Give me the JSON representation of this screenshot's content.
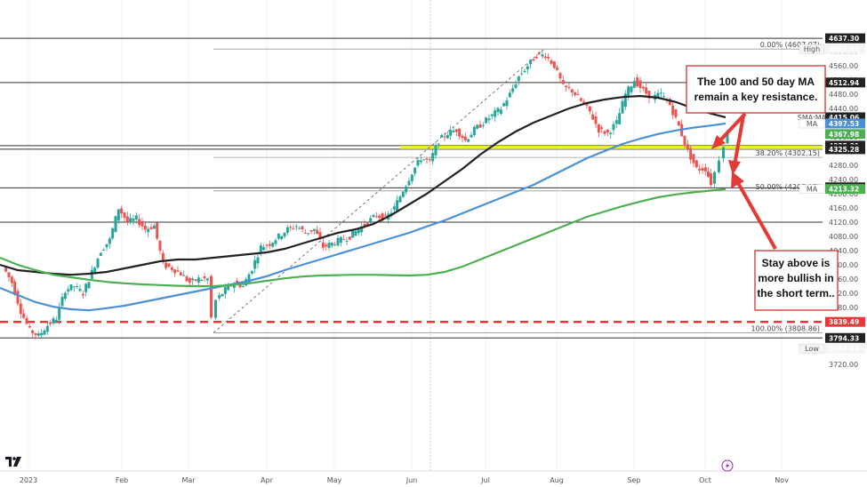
{
  "colors": {
    "up": "#26a69a",
    "down": "#ef5350",
    "ma_black": "#222222",
    "ma_blue": "#4a90d9",
    "ma_green": "#4caf50",
    "zone": "#e6f20a",
    "dash_red": "#e53935",
    "arrow_red": "#e53935",
    "box_border": "#d32f2f"
  },
  "chart_data": {
    "type": "line",
    "title": "",
    "x_months": [
      "2023",
      "Feb",
      "Mar",
      "Apr",
      "May",
      "Jun",
      "Jul",
      "Aug",
      "Sep",
      "Oct",
      "Nov"
    ],
    "y_ticks": [
      3720,
      3760,
      3800,
      3840,
      3880,
      3920,
      3960,
      4000,
      4040,
      4080,
      4120,
      4160,
      4200,
      4240,
      4280,
      4320,
      4360,
      4400,
      4440,
      4480,
      4520,
      4560,
      4600
    ],
    "ylim": [
      3700,
      4650
    ],
    "price_tags": [
      {
        "value": "4637.30",
        "price": 4637.3,
        "color": "#222222"
      },
      {
        "value": "4607.07",
        "price": 4607.07,
        "color": "#f5f5f5",
        "text_color": "#666666",
        "label": "High"
      },
      {
        "value": "4512.94",
        "price": 4512.94,
        "color": "#222222"
      },
      {
        "value": "4415.06",
        "price": 4415.06,
        "color": "#222222",
        "label": "SMA:MA"
      },
      {
        "value": "4397.53",
        "price": 4397.53,
        "color": "#4a90d9",
        "label": "MA"
      },
      {
        "value": "4367.98",
        "price": 4367.98,
        "color": "#4caf50"
      },
      {
        "value": "4335.31",
        "price": 4335.31,
        "color": "#222222"
      },
      {
        "value": "4325.28",
        "price": 4325.28,
        "color": "#222222"
      },
      {
        "value": "4218.07",
        "price": 4218.07,
        "color": "#222222"
      },
      {
        "value": "4216.45",
        "price": 4216.45,
        "color": "#222222"
      },
      {
        "value": "4213.32",
        "price": 4213.32,
        "color": "#4caf50",
        "label": "MA"
      },
      {
        "value": "3839.49",
        "price": 3839.49,
        "color": "#e53935"
      },
      {
        "value": "3794.33",
        "price": 3794.33,
        "color": "#222222"
      },
      {
        "value": "3764.49",
        "price": 3764.49,
        "color": "#f5f5f5",
        "text_color": "#666666",
        "label": "Low"
      }
    ],
    "fib_labels": [
      {
        "text": "0.00% (4607.07)",
        "price": 4607.07
      },
      {
        "text": "38.20% (4302.15)",
        "price": 4302.15
      },
      {
        "text": "50.00% (4207.97)",
        "price": 4207.97
      },
      {
        "text": "100.00% (3808.86)",
        "price": 3808.86
      }
    ],
    "horizontal_levels": [
      4637.3,
      4512.94,
      4335.31,
      4325.28,
      4216.45,
      4120,
      3794.33
    ],
    "support_zone": [
      4325.28,
      4335.31
    ],
    "dashed_level": 3839.49,
    "ma_100_black": [
      [
        0,
        4000
      ],
      [
        20,
        3985
      ],
      [
        40,
        3980
      ],
      [
        60,
        3975
      ],
      [
        80,
        3972
      ],
      [
        100,
        3975
      ],
      [
        120,
        3980
      ],
      [
        140,
        3990
      ],
      [
        160,
        4000
      ],
      [
        180,
        4010
      ],
      [
        200,
        4015
      ],
      [
        220,
        4015
      ],
      [
        240,
        4020
      ],
      [
        260,
        4025
      ],
      [
        280,
        4030
      ],
      [
        300,
        4035
      ],
      [
        320,
        4045
      ],
      [
        340,
        4060
      ],
      [
        360,
        4075
      ],
      [
        380,
        4090
      ],
      [
        400,
        4100
      ],
      [
        420,
        4115
      ],
      [
        440,
        4140
      ],
      [
        460,
        4170
      ],
      [
        480,
        4200
      ],
      [
        500,
        4235
      ],
      [
        520,
        4270
      ],
      [
        540,
        4310
      ],
      [
        560,
        4345
      ],
      [
        580,
        4375
      ],
      [
        600,
        4400
      ],
      [
        620,
        4420
      ],
      [
        640,
        4440
      ],
      [
        660,
        4455
      ],
      [
        680,
        4465
      ],
      [
        700,
        4472
      ],
      [
        720,
        4475
      ],
      [
        740,
        4470
      ],
      [
        760,
        4458
      ],
      [
        780,
        4440
      ],
      [
        800,
        4425
      ],
      [
        816,
        4415
      ]
    ],
    "ma_50_blue": [
      [
        0,
        3935
      ],
      [
        20,
        3915
      ],
      [
        40,
        3895
      ],
      [
        60,
        3882
      ],
      [
        80,
        3875
      ],
      [
        100,
        3872
      ],
      [
        120,
        3878
      ],
      [
        140,
        3885
      ],
      [
        160,
        3895
      ],
      [
        180,
        3905
      ],
      [
        200,
        3915
      ],
      [
        220,
        3925
      ],
      [
        240,
        3935
      ],
      [
        260,
        3945
      ],
      [
        280,
        3955
      ],
      [
        300,
        3968
      ],
      [
        320,
        3985
      ],
      [
        340,
        4000
      ],
      [
        360,
        4015
      ],
      [
        380,
        4030
      ],
      [
        400,
        4045
      ],
      [
        420,
        4060
      ],
      [
        440,
        4075
      ],
      [
        460,
        4090
      ],
      [
        480,
        4108
      ],
      [
        500,
        4125
      ],
      [
        520,
        4145
      ],
      [
        540,
        4165
      ],
      [
        560,
        4185
      ],
      [
        580,
        4205
      ],
      [
        600,
        4225
      ],
      [
        620,
        4250
      ],
      [
        640,
        4275
      ],
      [
        660,
        4300
      ],
      [
        680,
        4320
      ],
      [
        700,
        4340
      ],
      [
        720,
        4355
      ],
      [
        740,
        4368
      ],
      [
        760,
        4378
      ],
      [
        780,
        4386
      ],
      [
        800,
        4392
      ],
      [
        816,
        4397.5
      ]
    ],
    "ma_200_green": [
      [
        0,
        4020
      ],
      [
        20,
        4000
      ],
      [
        40,
        3985
      ],
      [
        60,
        3972
      ],
      [
        80,
        3965
      ],
      [
        100,
        3958
      ],
      [
        120,
        3952
      ],
      [
        140,
        3948
      ],
      [
        160,
        3945
      ],
      [
        180,
        3943
      ],
      [
        200,
        3941
      ],
      [
        220,
        3940
      ],
      [
        240,
        3940
      ],
      [
        260,
        3943
      ],
      [
        280,
        3948
      ],
      [
        300,
        3955
      ],
      [
        320,
        3962
      ],
      [
        340,
        3967
      ],
      [
        360,
        3970
      ],
      [
        380,
        3971
      ],
      [
        400,
        3972
      ],
      [
        420,
        3972
      ],
      [
        440,
        3971
      ],
      [
        460,
        3970
      ],
      [
        480,
        3972
      ],
      [
        500,
        3980
      ],
      [
        520,
        3995
      ],
      [
        540,
        4015
      ],
      [
        560,
        4035
      ],
      [
        580,
        4055
      ],
      [
        600,
        4075
      ],
      [
        620,
        4095
      ],
      [
        640,
        4115
      ],
      [
        660,
        4135
      ],
      [
        680,
        4150
      ],
      [
        700,
        4165
      ],
      [
        720,
        4178
      ],
      [
        740,
        4190
      ],
      [
        760,
        4198
      ],
      [
        780,
        4204
      ],
      [
        800,
        4209
      ],
      [
        816,
        4213.3
      ]
    ],
    "price_path": [
      [
        5,
        3995
      ],
      [
        15,
        3950
      ],
      [
        25,
        3870
      ],
      [
        35,
        3815
      ],
      [
        45,
        3800
      ],
      [
        55,
        3830
      ],
      [
        65,
        3850
      ],
      [
        75,
        3930
      ],
      [
        85,
        3940
      ],
      [
        95,
        3920
      ],
      [
        105,
        3980
      ],
      [
        115,
        4040
      ],
      [
        125,
        4070
      ],
      [
        135,
        4160
      ],
      [
        145,
        4120
      ],
      [
        155,
        4130
      ],
      [
        165,
        4100
      ],
      [
        175,
        4110
      ],
      [
        185,
        4000
      ],
      [
        195,
        3990
      ],
      [
        205,
        3975
      ],
      [
        215,
        3950
      ],
      [
        225,
        3960
      ],
      [
        235,
        3960
      ],
      [
        240,
        3850
      ],
      [
        245,
        3900
      ],
      [
        255,
        3930
      ],
      [
        265,
        3950
      ],
      [
        275,
        3940
      ],
      [
        285,
        3990
      ],
      [
        295,
        4050
      ],
      [
        305,
        4060
      ],
      [
        315,
        4080
      ],
      [
        325,
        4100
      ],
      [
        335,
        4110
      ],
      [
        345,
        4090
      ],
      [
        355,
        4100
      ],
      [
        365,
        4050
      ],
      [
        375,
        4060
      ],
      [
        385,
        4070
      ],
      [
        395,
        4080
      ],
      [
        405,
        4100
      ],
      [
        415,
        4120
      ],
      [
        425,
        4140
      ],
      [
        435,
        4130
      ],
      [
        445,
        4160
      ],
      [
        455,
        4210
      ],
      [
        465,
        4260
      ],
      [
        475,
        4300
      ],
      [
        485,
        4290
      ],
      [
        495,
        4350
      ],
      [
        505,
        4370
      ],
      [
        515,
        4380
      ],
      [
        525,
        4350
      ],
      [
        535,
        4380
      ],
      [
        545,
        4400
      ],
      [
        555,
        4420
      ],
      [
        565,
        4440
      ],
      [
        575,
        4480
      ],
      [
        585,
        4530
      ],
      [
        595,
        4560
      ],
      [
        605,
        4590
      ],
      [
        615,
        4590
      ],
      [
        625,
        4560
      ],
      [
        635,
        4500
      ],
      [
        645,
        4490
      ],
      [
        655,
        4460
      ],
      [
        665,
        4430
      ],
      [
        675,
        4380
      ],
      [
        685,
        4370
      ],
      [
        695,
        4400
      ],
      [
        705,
        4480
      ],
      [
        715,
        4520
      ],
      [
        725,
        4490
      ],
      [
        735,
        4470
      ],
      [
        745,
        4480
      ],
      [
        755,
        4450
      ],
      [
        765,
        4390
      ],
      [
        775,
        4320
      ],
      [
        785,
        4270
      ],
      [
        795,
        4270
      ],
      [
        801,
        4230
      ],
      [
        806,
        4260
      ],
      [
        811,
        4300
      ],
      [
        816,
        4340
      ],
      [
        820,
        4368
      ]
    ],
    "diagonal_trendline": [
      [
        240,
        3808.86
      ],
      [
        612,
        4607.07
      ]
    ],
    "annotations": [
      {
        "text_lines": [
          "The 100 and 50 day MA",
          "remain a key resistance."
        ]
      },
      {
        "text_lines": [
          "Stay above is",
          "more bullish in",
          "the short term.."
        ]
      }
    ],
    "grid": false,
    "legend": "none"
  }
}
